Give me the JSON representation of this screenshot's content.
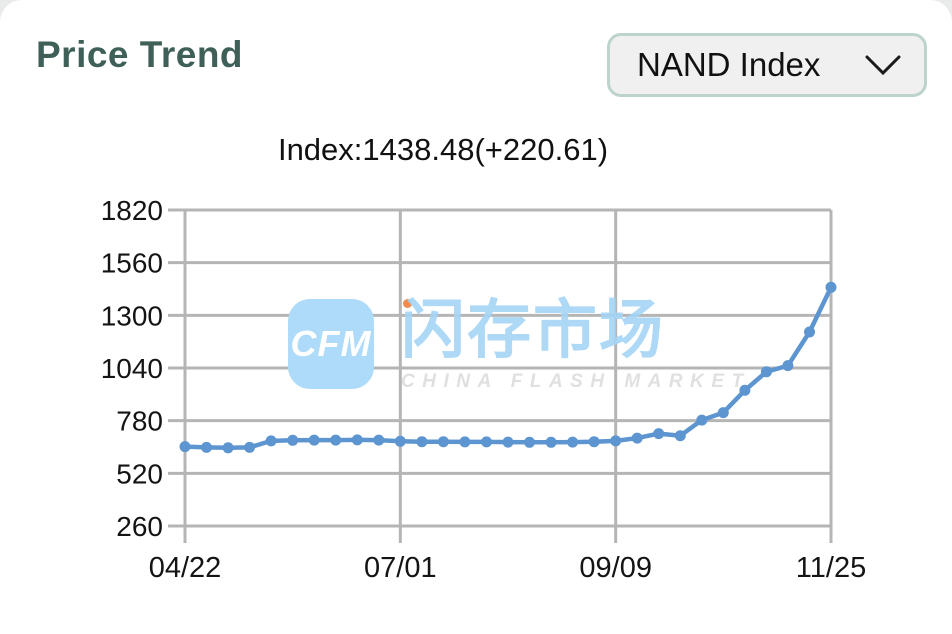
{
  "header": {
    "title": "Price Trend",
    "title_color": "#3e6059",
    "dropdown": {
      "label": "NAND Index",
      "icon": "chevron-down-icon"
    }
  },
  "chart_data": {
    "type": "line",
    "title": "Index:1438.48(+220.61)",
    "current_value": 1438.48,
    "change": "+220.61",
    "series": [
      {
        "name": "NAND Index",
        "color": "#5d95d0",
        "values": [
          652,
          648,
          646,
          648,
          680,
          683,
          684,
          684,
          685,
          684,
          678,
          676,
          676,
          675,
          675,
          674,
          673,
          673,
          674,
          676,
          680,
          694,
          716,
          706,
          783,
          820,
          930,
          1021,
          1052,
          1217.87,
          1438.48
        ]
      }
    ],
    "x_tick_labels": [
      "04/22",
      "07/01",
      "09/09",
      "11/25"
    ],
    "x_tick_indices": [
      0,
      10,
      20,
      30
    ],
    "y_ticks": [
      260,
      520,
      780,
      1040,
      1300,
      1560,
      1820
    ],
    "ylim": [
      260,
      1820
    ],
    "grid": true,
    "legend_position": "none",
    "grid_color": "#b5b5b5",
    "label_color": "#141414"
  },
  "watermark": {
    "badge_text": "CFM",
    "cjk_text": "闪存市场",
    "subtext": "CHINA FLASH MARKET",
    "badge_color": "#aedbf9",
    "text_color": "#a5d5f7",
    "subtext_color": "#e0e0e0",
    "accent_dot_color": "#f08c50"
  }
}
